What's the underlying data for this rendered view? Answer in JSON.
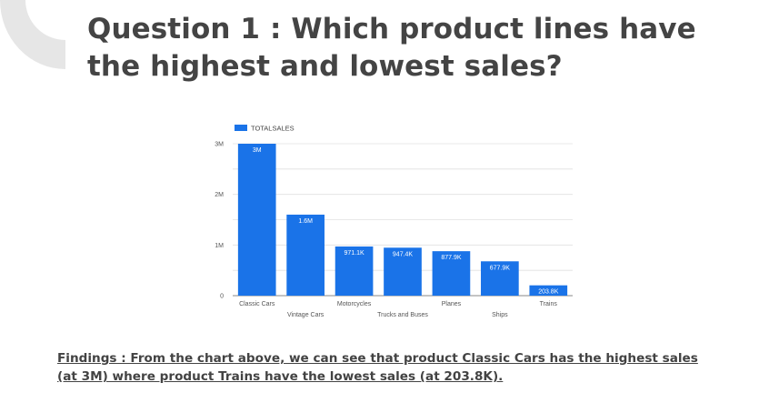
{
  "slide": {
    "title": "Question 1 : Which product lines have the highest and lowest sales?",
    "findings": "Findings : From the chart above, we can see that product Classic Cars has the highest sales (at 3M) where product Trains have the lowest sales (at 203.8K)."
  },
  "colors": {
    "bar": "#1a73e8",
    "gridline": "#e0e0e0",
    "axis": "#888888",
    "corner_shape": "#e6e6e6",
    "title": "#444444"
  },
  "chart_data": {
    "type": "bar",
    "legend": "top-left",
    "grid": true,
    "ylim": [
      0,
      3000000
    ],
    "yticks": [
      {
        "value": 0,
        "label": "0"
      },
      {
        "value": 1000000,
        "label": "1M"
      },
      {
        "value": 2000000,
        "label": "2M"
      },
      {
        "value": 3000000,
        "label": "3M"
      }
    ],
    "categories": [
      "Classic Cars",
      "Vintage Cars",
      "Motorcycles",
      "Trucks and Buses",
      "Planes",
      "Ships",
      "Trains"
    ],
    "series": [
      {
        "name": "TOTALSALES",
        "values": [
          3000000,
          1600000,
          971100,
          947400,
          877900,
          677900,
          203800
        ],
        "labels": [
          "3M",
          "1.6M",
          "971.1K",
          "947.4K",
          "877.9K",
          "677.9K",
          "203.8K"
        ]
      }
    ],
    "title": "",
    "xlabel": "",
    "ylabel": ""
  }
}
